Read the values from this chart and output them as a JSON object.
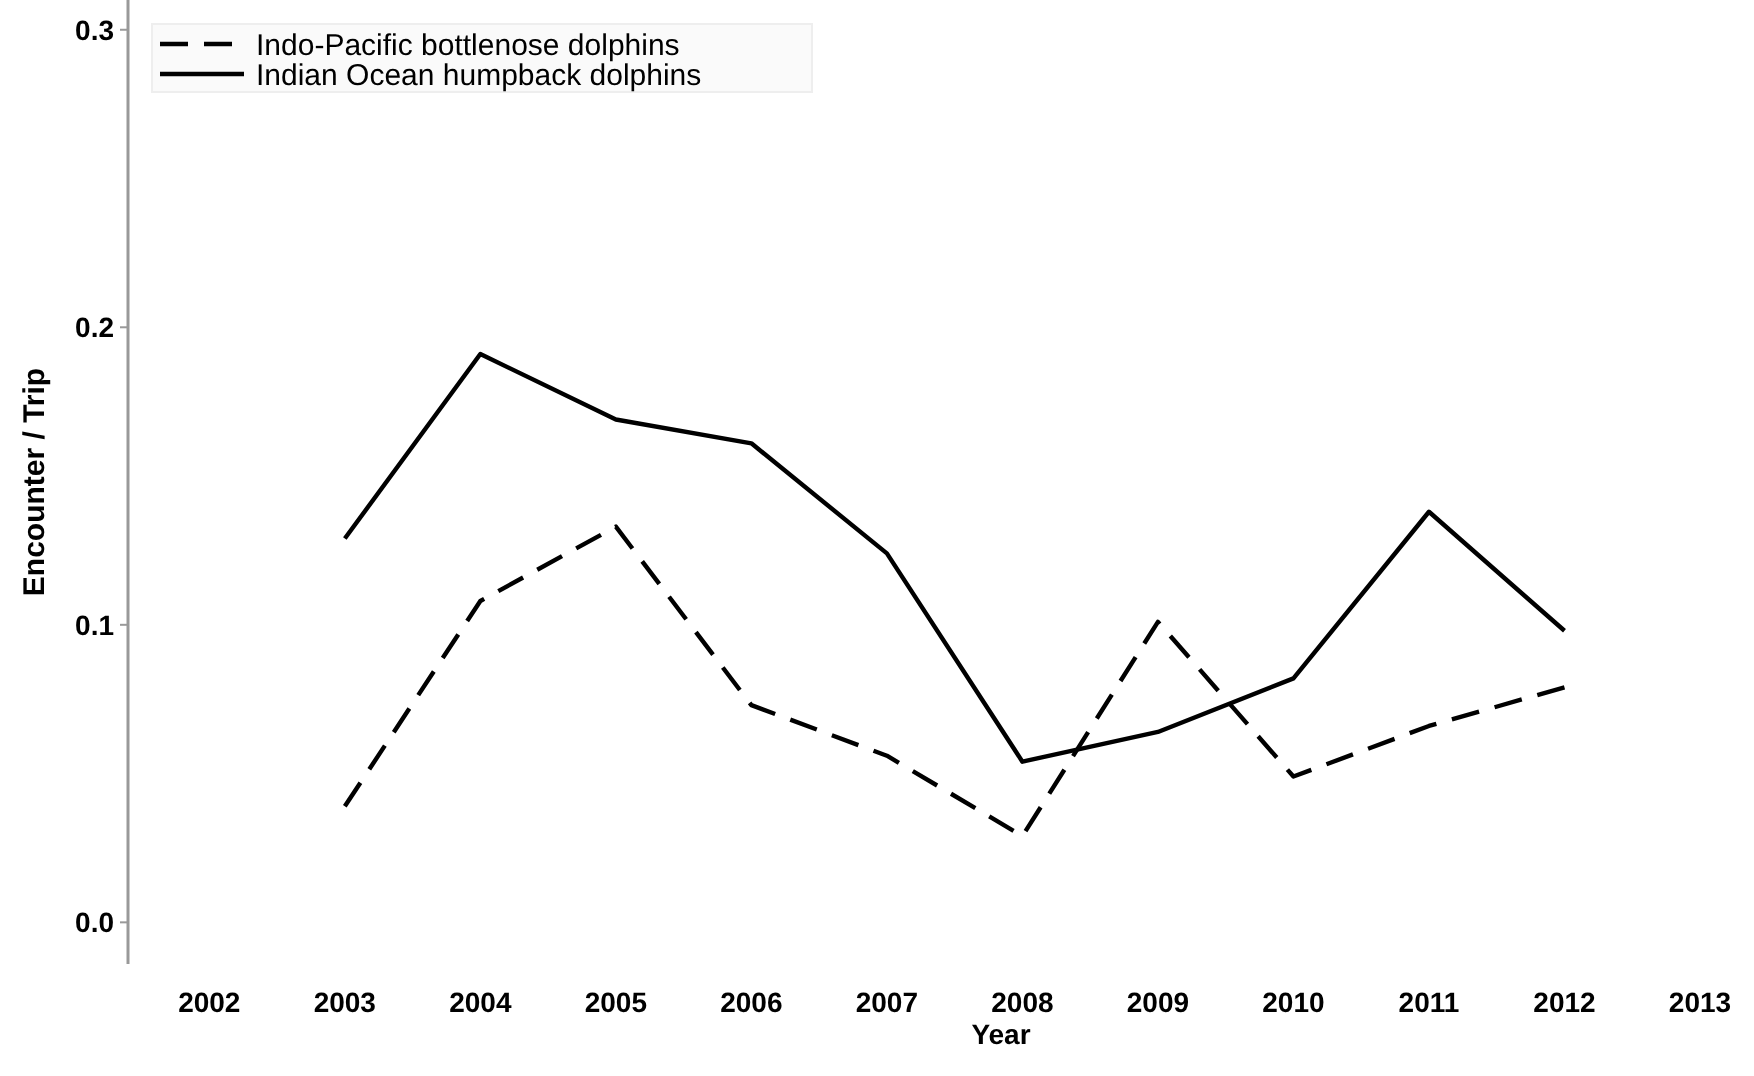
{
  "chart_data": {
    "type": "line",
    "xlabel": "Year",
    "ylabel": "Encounter / Trip",
    "x": [
      2003,
      2004,
      2005,
      2006,
      2007,
      2008,
      2009,
      2010,
      2011,
      2012
    ],
    "series": [
      {
        "name": "Indo-Pacific bottlenose dolphins",
        "color": "#000000",
        "line_style": "dashed",
        "values": [
          0.039,
          0.108,
          0.133,
          0.073,
          0.056,
          0.029,
          0.101,
          0.049,
          0.066,
          0.079
        ]
      },
      {
        "name": "Indian Ocean humpback dolphins",
        "color": "#000000",
        "line_style": "solid",
        "values": [
          0.129,
          0.191,
          0.169,
          0.161,
          0.124,
          0.054,
          0.064,
          0.082,
          0.138,
          0.098
        ]
      }
    ],
    "xlim": [
      2001.4,
      2013
    ],
    "xticks": [
      2002,
      2003,
      2004,
      2005,
      2006,
      2007,
      2008,
      2009,
      2010,
      2011,
      2012,
      2013
    ],
    "ylim": [
      -0.014,
      0.31
    ],
    "yticks": [
      {
        "value": 0,
        "label": "0.0"
      },
      {
        "value": 0.1,
        "label": "0.1"
      },
      {
        "value": 0.2,
        "label": "0.2"
      },
      {
        "value": 0.3,
        "label": "0.3"
      }
    ],
    "grid": false,
    "legend": "top left",
    "marker": "none"
  }
}
